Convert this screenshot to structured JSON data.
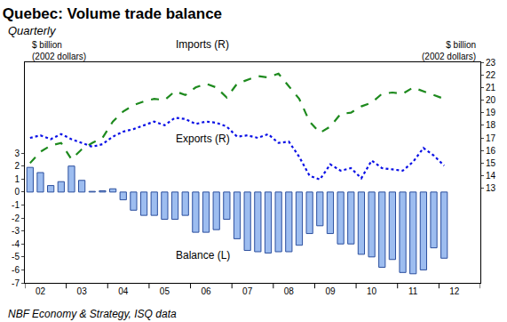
{
  "chart_data": {
    "type": "bar",
    "title": "Quebec: Volume trade balance",
    "subtitle": "Quarterly",
    "source": "NBF Economy & Strategy, ISQ data",
    "ylabel": "$ billion\n(2002 dollars)",
    "y2label": "$ billion\n(2002 dollars)",
    "categories": [
      null,
      "02",
      null,
      null,
      null,
      "03",
      null,
      null,
      null,
      "04",
      null,
      null,
      null,
      "05",
      null,
      null,
      null,
      "06",
      null,
      null,
      null,
      "07",
      null,
      null,
      null,
      "08",
      null,
      null,
      null,
      "09",
      null,
      null,
      null,
      "10",
      null,
      null,
      null,
      "11",
      null,
      null,
      null,
      "12",
      null,
      null
    ],
    "series": [
      {
        "name": "Balance (L)",
        "type": "bar",
        "axis": "y",
        "color": "#9dbdf0",
        "values": [
          1.9,
          1.5,
          0.5,
          0.8,
          2.0,
          0.9,
          0.05,
          0.1,
          0.25,
          -0.6,
          -1.4,
          -1.8,
          -1.8,
          -2.1,
          -2.1,
          -1.8,
          -3.1,
          -3.1,
          -2.9,
          -2.1,
          -3.6,
          -4.5,
          -4.6,
          -4.7,
          -4.6,
          -4.6,
          -4.1,
          -3.2,
          -2.6,
          -3.2,
          -4.0,
          -4.0,
          -4.8,
          -5.0,
          -5.8,
          -5.2,
          -6.2,
          -6.3,
          -6.0,
          -4.3,
          -5.1,
          null,
          null,
          null
        ]
      },
      {
        "name": "Imports (R)",
        "type": "line",
        "axis": "y2",
        "color": "#1e8a1e",
        "line_style": "dashed",
        "values": [
          15.0,
          15.9,
          16.4,
          16.6,
          15.3,
          16.1,
          16.6,
          17.0,
          18.3,
          19.1,
          19.6,
          19.9,
          20.1,
          20.0,
          20.7,
          20.4,
          21.0,
          21.3,
          21.0,
          20.2,
          21.3,
          21.6,
          21.9,
          21.8,
          22.1,
          21.1,
          20.1,
          18.3,
          17.4,
          17.9,
          18.9,
          19.0,
          19.5,
          19.8,
          20.5,
          20.6,
          20.5,
          21.0,
          20.7,
          20.4,
          20.1,
          null,
          null,
          null
        ]
      },
      {
        "name": "Exports (R)",
        "type": "line",
        "axis": "y2",
        "color": "#0a10e6",
        "line_style": "dotted",
        "values": [
          17.0,
          17.2,
          16.9,
          17.3,
          16.9,
          16.6,
          16.3,
          16.5,
          17.1,
          17.5,
          17.7,
          18.0,
          18.3,
          18.0,
          18.6,
          18.5,
          18.1,
          18.3,
          18.2,
          17.9,
          17.1,
          17.2,
          17.0,
          17.3,
          16.6,
          16.7,
          15.5,
          14.0,
          13.7,
          14.9,
          14.4,
          14.6,
          13.8,
          15.2,
          14.6,
          14.5,
          14.4,
          15.1,
          16.2,
          15.6,
          14.8,
          null,
          null,
          null
        ]
      }
    ],
    "ylim": [
      -7,
      10
    ],
    "yticks": [
      -7,
      -6,
      -5,
      -4,
      -3,
      -2,
      -1,
      0,
      1,
      2,
      3
    ],
    "y2lim": [
      5.5,
      23
    ],
    "y2ticks": [
      13,
      14,
      15,
      16,
      17,
      18,
      19,
      20,
      21,
      22,
      23
    ],
    "grid": false
  }
}
